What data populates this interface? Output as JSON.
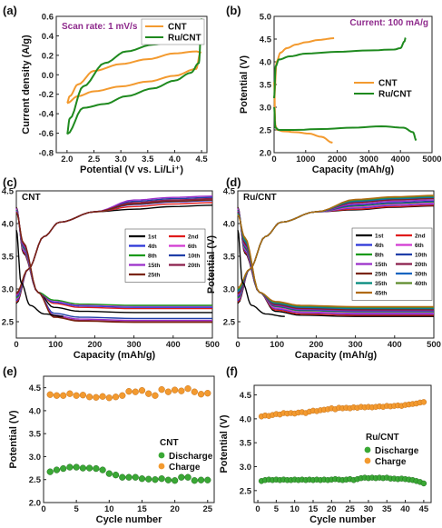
{
  "chart_data": [
    {
      "panel": "(a)",
      "type": "line",
      "annotation": "Scan rate: 1 mV/s",
      "xlabel": "Potential (V vs. Li/Li⁺)",
      "ylabel": "Current density (A/g)",
      "xlim": [
        1.8,
        4.6
      ],
      "ylim": [
        -0.8,
        0.6
      ],
      "xticks": [
        "2.0",
        "2.5",
        "3.0",
        "3.5",
        "4.0",
        "4.5"
      ],
      "yticks": [
        "-0.8",
        "-0.6",
        "-0.4",
        "-0.2",
        "0.0",
        "0.2",
        "0.4",
        "0.6"
      ],
      "legend": [
        "CNT",
        "Ru/CNT"
      ],
      "legend_position": "top-right",
      "colors": [
        "#f39a2f",
        "#1f8a1f"
      ],
      "series": [
        {
          "name": "CNT",
          "x": [
            2.0,
            2.2,
            2.5,
            3.0,
            3.5,
            4.0,
            4.4,
            4.48,
            4.4,
            4.0,
            3.5,
            3.0,
            2.5,
            2.2,
            2.05,
            2.0
          ],
          "y": [
            -0.29,
            -0.22,
            -0.17,
            -0.12,
            -0.07,
            -0.01,
            0.06,
            0.23,
            0.24,
            0.22,
            0.16,
            0.11,
            0.04,
            -0.1,
            -0.22,
            -0.29
          ]
        },
        {
          "name": "Ru/CNT",
          "x": [
            2.0,
            2.3,
            2.7,
            3.1,
            3.6,
            4.0,
            4.3,
            4.45,
            4.5,
            4.35,
            4.0,
            3.6,
            3.1,
            2.7,
            2.3,
            2.05,
            2.0
          ],
          "y": [
            -0.61,
            -0.34,
            -0.3,
            -0.22,
            -0.14,
            -0.06,
            0.02,
            0.12,
            0.57,
            0.46,
            0.35,
            0.31,
            0.24,
            0.12,
            -0.12,
            -0.45,
            -0.61
          ]
        }
      ]
    },
    {
      "panel": "(b)",
      "type": "line",
      "annotation": "Current: 100 mA/g",
      "xlabel": "Capacity (mAh/g)",
      "ylabel": "Potential (V)",
      "xlim": [
        0,
        5000
      ],
      "ylim": [
        2.0,
        5.0
      ],
      "xticks": [
        "0",
        "1000",
        "2000",
        "3000",
        "4000",
        "5000"
      ],
      "yticks": [
        "2.0",
        "2.5",
        "3.0",
        "3.5",
        "4.0",
        "4.5",
        "5.0"
      ],
      "legend": [
        "CNT",
        "Ru/CNT"
      ],
      "legend_position": "center-right",
      "colors": [
        "#f39a2f",
        "#1f8a1f"
      ],
      "series": [
        {
          "name": "CNT discharge",
          "x": [
            0,
            40,
            100,
            300,
            700,
            1100,
            1500,
            1850
          ],
          "y": [
            3.55,
            2.6,
            2.5,
            2.47,
            2.45,
            2.42,
            2.35,
            2.22
          ]
        },
        {
          "name": "CNT charge",
          "x": [
            0,
            80,
            200,
            400,
            700,
            1000,
            1400,
            1900
          ],
          "y": [
            3.2,
            4.0,
            4.2,
            4.3,
            4.38,
            4.43,
            4.48,
            4.52
          ]
        },
        {
          "name": "Ru/CNT discharge",
          "x": [
            0,
            40,
            150,
            600,
            1500,
            2500,
            3400,
            4100,
            4400,
            4500
          ],
          "y": [
            3.0,
            2.55,
            2.5,
            2.5,
            2.52,
            2.55,
            2.58,
            2.55,
            2.45,
            2.27
          ]
        },
        {
          "name": "Ru/CNT charge",
          "x": [
            0,
            50,
            150,
            500,
            1000,
            2000,
            3000,
            3800,
            4000,
            4130,
            4160
          ],
          "y": [
            3.2,
            3.9,
            4.05,
            4.12,
            4.18,
            4.22,
            4.25,
            4.27,
            4.3,
            4.45,
            4.53
          ]
        }
      ]
    },
    {
      "panel": "(c)",
      "type": "line",
      "annotation": "CNT",
      "xlabel": "Capacity (mAh/g)",
      "ylabel": "Potential (V)",
      "xlim": [
        0,
        500
      ],
      "ylim": [
        2.25,
        4.5
      ],
      "xticks": [
        "0",
        "100",
        "200",
        "300",
        "400",
        "500"
      ],
      "yticks": [
        "2.5",
        "3.0",
        "3.5",
        "4.0",
        "4.5"
      ],
      "legend": [
        "1st",
        "2nd",
        "4th",
        "6th",
        "8th",
        "10th",
        "15th",
        "20th",
        "25th"
      ],
      "legend_position": "center-right",
      "colors": [
        "#000000",
        "#e01b1b",
        "#2b35d8",
        "#d23ad2",
        "#1a9a1a",
        "#1f3fa8",
        "#9b2fc9",
        "#8a1d4a",
        "#7a2510"
      ],
      "series": [
        {
          "name": "1st",
          "discharge_end": 2.64,
          "charge_end": 4.28
        },
        {
          "name": "2nd",
          "discharge_end": 2.7,
          "charge_end": 4.32
        },
        {
          "name": "4th",
          "discharge_end": 2.72,
          "charge_end": 4.35
        },
        {
          "name": "6th",
          "discharge_end": 2.74,
          "charge_end": 4.37
        },
        {
          "name": "8th",
          "discharge_end": 2.75,
          "charge_end": 4.36
        },
        {
          "name": "10th",
          "discharge_end": 2.55,
          "charge_end": 4.4
        },
        {
          "name": "15th",
          "discharge_end": 2.52,
          "charge_end": 4.42
        },
        {
          "name": "20th",
          "discharge_end": 2.5,
          "charge_end": 4.38
        },
        {
          "name": "25th",
          "discharge_end": 2.49,
          "charge_end": 4.36
        }
      ]
    },
    {
      "panel": "(d)",
      "type": "line",
      "annotation": "Ru/CNT",
      "xlabel": "Capacity (mAh/g)",
      "ylabel": "Potential (V)",
      "xlim": [
        0,
        500
      ],
      "ylim": [
        2.25,
        4.5
      ],
      "xticks": [
        "0",
        "100",
        "200",
        "300",
        "400",
        "500"
      ],
      "yticks": [
        "2.5",
        "3.0",
        "3.5",
        "4.0",
        "4.5"
      ],
      "legend": [
        "1st",
        "2nd",
        "4th",
        "6th",
        "8th",
        "10th",
        "15th",
        "20th",
        "25th",
        "30th",
        "35th",
        "40th",
        "45th"
      ],
      "legend_position": "center-right",
      "colors": [
        "#000000",
        "#e01b1b",
        "#2b35d8",
        "#d23ad2",
        "#1a9a1a",
        "#1f3fa8",
        "#9b2fc9",
        "#8a1d4a",
        "#7a2510",
        "#1565c0",
        "#00897b",
        "#5d8a2b",
        "#b06a10"
      ],
      "series": [
        {
          "name": "1st",
          "discharge_end": 2.58,
          "charge_end": 4.27
        },
        {
          "name": "2nd",
          "discharge_end": 2.6,
          "charge_end": 4.28
        },
        {
          "name": "4th",
          "discharge_end": 2.62,
          "charge_end": 4.3
        },
        {
          "name": "6th",
          "discharge_end": 2.63,
          "charge_end": 4.31
        },
        {
          "name": "8th",
          "discharge_end": 2.65,
          "charge_end": 4.33
        },
        {
          "name": "10th",
          "discharge_end": 2.66,
          "charge_end": 4.34
        },
        {
          "name": "15th",
          "discharge_end": 2.67,
          "charge_end": 4.36
        },
        {
          "name": "20th",
          "discharge_end": 2.68,
          "charge_end": 4.38
        },
        {
          "name": "25th",
          "discharge_end": 2.69,
          "charge_end": 4.39
        },
        {
          "name": "30th",
          "discharge_end": 2.7,
          "charge_end": 4.4
        },
        {
          "name": "35th",
          "discharge_end": 2.71,
          "charge_end": 4.41
        },
        {
          "name": "40th",
          "discharge_end": 2.72,
          "charge_end": 4.42
        },
        {
          "name": "45th",
          "discharge_end": 2.73,
          "charge_end": 4.43
        }
      ]
    },
    {
      "panel": "(e)",
      "type": "scatter",
      "annotation": "CNT",
      "xlabel": "Cycle number",
      "ylabel": "Potential (V)",
      "xlim": [
        0,
        26
      ],
      "ylim": [
        2.0,
        4.75
      ],
      "xticks": [
        "0",
        "5",
        "10",
        "15",
        "20",
        "25"
      ],
      "yticks": [
        "2.0",
        "2.5",
        "3.0",
        "3.5",
        "4.0",
        "4.5"
      ],
      "legend": [
        "Discharge",
        "Charge"
      ],
      "legend_position": "center-right",
      "colors": [
        "#3aa835",
        "#f39a2f"
      ],
      "x": [
        1,
        2,
        3,
        4,
        5,
        6,
        7,
        8,
        9,
        10,
        11,
        12,
        13,
        14,
        15,
        16,
        17,
        18,
        19,
        20,
        21,
        22,
        23,
        24,
        25
      ],
      "series": [
        {
          "name": "Discharge",
          "values": [
            2.67,
            2.71,
            2.74,
            2.77,
            2.77,
            2.75,
            2.75,
            2.74,
            2.71,
            2.63,
            2.6,
            2.55,
            2.55,
            2.55,
            2.52,
            2.51,
            2.5,
            2.52,
            2.49,
            2.48,
            2.55,
            2.55,
            2.48,
            2.49,
            2.49
          ]
        },
        {
          "name": "Charge",
          "values": [
            4.35,
            4.33,
            4.33,
            4.37,
            4.33,
            4.34,
            4.3,
            4.29,
            4.31,
            4.28,
            4.3,
            4.33,
            4.42,
            4.41,
            4.44,
            4.37,
            4.33,
            4.46,
            4.41,
            4.45,
            4.43,
            4.48,
            4.41,
            4.36,
            4.38
          ]
        }
      ]
    },
    {
      "panel": "(f)",
      "type": "scatter",
      "annotation": "Ru/CNT",
      "xlabel": "Cycle number",
      "ylabel": "Potential (V)",
      "xlim": [
        -1,
        47
      ],
      "ylim": [
        2.25,
        4.7
      ],
      "xticks": [
        "0",
        "5",
        "10",
        "15",
        "20",
        "25",
        "30",
        "35",
        "40",
        "45"
      ],
      "yticks": [
        "2.5",
        "3.0",
        "3.5",
        "4.0",
        "4.5"
      ],
      "legend": [
        "Discharge",
        "Charge"
      ],
      "legend_position": "center-right",
      "colors": [
        "#3aa835",
        "#f39a2f"
      ],
      "x": [
        1,
        2,
        3,
        4,
        5,
        6,
        7,
        8,
        9,
        10,
        11,
        12,
        13,
        14,
        15,
        16,
        17,
        18,
        19,
        20,
        21,
        22,
        23,
        24,
        25,
        26,
        27,
        28,
        29,
        30,
        31,
        32,
        33,
        34,
        35,
        36,
        37,
        38,
        39,
        40,
        41,
        42,
        43,
        44,
        45
      ],
      "series": [
        {
          "name": "Discharge",
          "values": [
            2.7,
            2.72,
            2.73,
            2.72,
            2.73,
            2.72,
            2.73,
            2.72,
            2.72,
            2.73,
            2.72,
            2.73,
            2.72,
            2.73,
            2.72,
            2.73,
            2.72,
            2.73,
            2.72,
            2.73,
            2.74,
            2.73,
            2.72,
            2.73,
            2.74,
            2.72,
            2.74,
            2.76,
            2.77,
            2.76,
            2.77,
            2.76,
            2.77,
            2.76,
            2.77,
            2.75,
            2.75,
            2.74,
            2.75,
            2.74,
            2.73,
            2.72,
            2.7,
            2.68,
            2.65
          ]
        },
        {
          "name": "Charge",
          "values": [
            4.05,
            4.07,
            4.06,
            4.08,
            4.1,
            4.09,
            4.12,
            4.11,
            4.12,
            4.11,
            4.13,
            4.14,
            4.12,
            4.15,
            4.17,
            4.16,
            4.18,
            4.19,
            4.2,
            4.22,
            4.2,
            4.23,
            4.22,
            4.23,
            4.22,
            4.24,
            4.23,
            4.25,
            4.24,
            4.25,
            4.24,
            4.25,
            4.26,
            4.25,
            4.27,
            4.26,
            4.27,
            4.28,
            4.27,
            4.29,
            4.3,
            4.31,
            4.32,
            4.34,
            4.35
          ]
        }
      ]
    }
  ]
}
